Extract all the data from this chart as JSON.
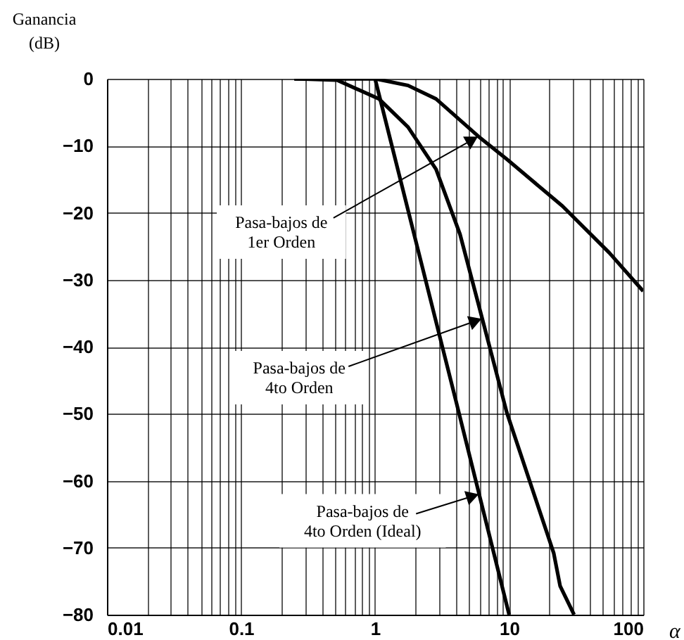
{
  "chart_data": {
    "type": "line",
    "xlabel": "α",
    "ylabel": "Ganancia\n(dB)",
    "log": "x",
    "grid": true,
    "marker": "none",
    "line_style": "solid",
    "xlim": [
      0.01,
      100
    ],
    "ylim": [
      -80,
      0
    ],
    "xticks": [
      0.01,
      {
        "value": 0.02,
        "label": null
      },
      {
        "value": 0.03,
        "label": null
      },
      {
        "value": 0.04,
        "label": null
      },
      {
        "value": 0.05,
        "label": null
      },
      {
        "value": 0.06,
        "label": null
      },
      {
        "value": 0.07,
        "label": null
      },
      {
        "value": 0.08,
        "label": null
      },
      {
        "value": 0.09,
        "label": null
      },
      0.1,
      {
        "value": 0.2,
        "label": null
      },
      {
        "value": 0.3,
        "label": null
      },
      {
        "value": 0.4,
        "label": null
      },
      {
        "value": 0.5,
        "label": null
      },
      {
        "value": 0.6,
        "label": null
      },
      {
        "value": 0.7,
        "label": null
      },
      {
        "value": 0.8,
        "label": null
      },
      {
        "value": 0.9,
        "label": null
      },
      1,
      {
        "value": 2,
        "label": null
      },
      {
        "value": 3,
        "label": null
      },
      {
        "value": 4,
        "label": null
      },
      {
        "value": 5,
        "label": null
      },
      {
        "value": 6,
        "label": null
      },
      {
        "value": 7,
        "label": null
      },
      {
        "value": 8,
        "label": null
      },
      {
        "value": 9,
        "label": null
      },
      10,
      {
        "value": 20,
        "label": null
      },
      {
        "value": 30,
        "label": null
      },
      {
        "value": 40,
        "label": null
      },
      {
        "value": 50,
        "label": null
      },
      {
        "value": 60,
        "label": null
      },
      {
        "value": 70,
        "label": null
      },
      {
        "value": 80,
        "label": null
      },
      {
        "value": 90,
        "label": null
      },
      100
    ],
    "yticks": [
      -80,
      -70,
      -60,
      -50,
      -40,
      -30,
      -20,
      -10,
      0
    ],
    "series": [
      {
        "color": "#000000",
        "x": [
          0.25,
          0.6,
          1.0,
          1.76,
          2.85,
          5.9,
          9.6,
          25,
          56,
          100
        ],
        "values": [
          0,
          0,
          0,
          -1,
          -3,
          -8.6,
          -12,
          -19,
          -26,
          -31.7
        ]
      },
      {
        "color": "#000000",
        "x": [
          0.25,
          0.52,
          1.07,
          1.76,
          2.85,
          4.3,
          6.3,
          9.6,
          21.5,
          24,
          30.5
        ],
        "values": [
          0,
          -0.2,
          -3,
          -7.2,
          -13.5,
          -23.2,
          -35.8,
          -49.8,
          -70.8,
          -75.7,
          -80
        ]
      },
      {
        "color": "#000000",
        "x": [
          0.25,
          1,
          2,
          4,
          10
        ],
        "values": [
          0,
          0,
          -24,
          -48,
          -80
        ]
      }
    ],
    "annotations": [
      {
        "text": "Pasa-bajos de\n1er Orden",
        "x": 5.9,
        "y": -8.6
      },
      {
        "text": "Pasa-bajos de\n4to Orden",
        "x": 6.3,
        "y": -35.8
      },
      {
        "text": "Pasa-bajos de\n4to Orden (Ideal)",
        "x": 6,
        "y": -62
      }
    ]
  }
}
